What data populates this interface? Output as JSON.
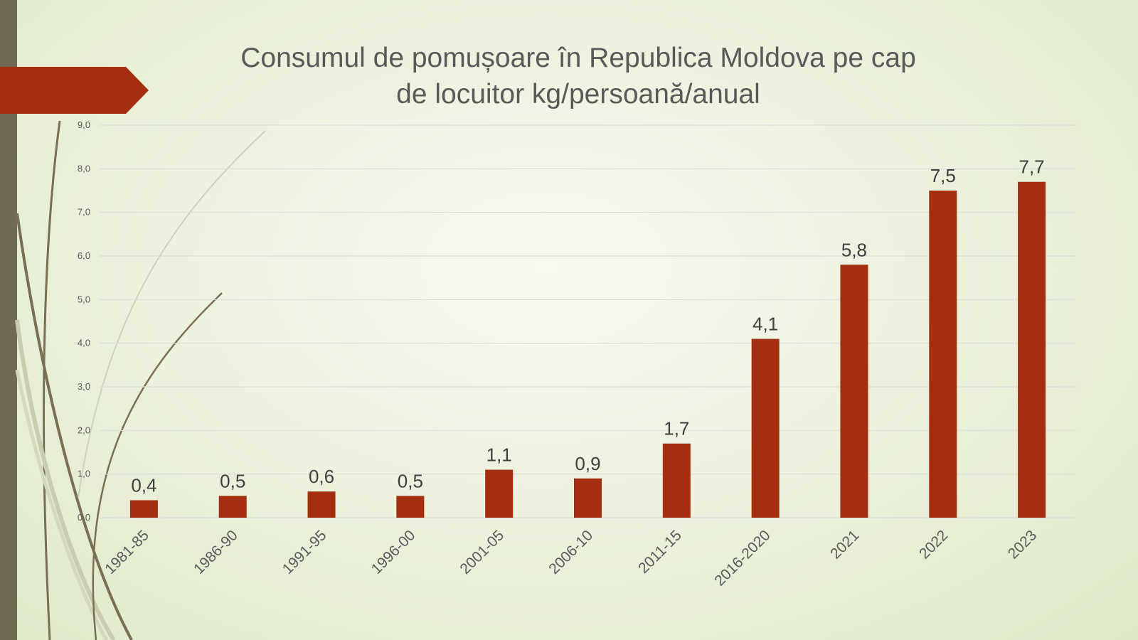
{
  "chart_data": {
    "type": "bar",
    "title": "Consumul de pomușoare în Republica Moldova pe cap de locuitor kg/persoană/anual",
    "title_lines": [
      "Consumul de pomușoare în Republica Moldova pe cap",
      "de locuitor kg/persoană/anual"
    ],
    "categories": [
      "1981-85",
      "1986-90",
      "1991-95",
      "1996-00",
      "2001-05",
      "2006-10",
      "2011-15",
      "2016-2020",
      "2021",
      "2022",
      "2023"
    ],
    "values": [
      0.4,
      0.5,
      0.6,
      0.5,
      1.1,
      0.9,
      1.7,
      4.1,
      5.8,
      7.5,
      7.7
    ],
    "data_labels": [
      "0,4",
      "0,5",
      "0,6",
      "0,5",
      "1,1",
      "0,9",
      "1,7",
      "4,1",
      "5,8",
      "7,5",
      "7,7"
    ],
    "ylim": [
      0,
      9
    ],
    "yticks": [
      "0,0",
      "1,0",
      "2,0",
      "3,0",
      "4,0",
      "5,0",
      "6,0",
      "7,0",
      "8,0",
      "9,0"
    ],
    "xlabel": "",
    "ylabel": "",
    "grid": true,
    "legend": "none",
    "bar_color": "#a52e10"
  }
}
